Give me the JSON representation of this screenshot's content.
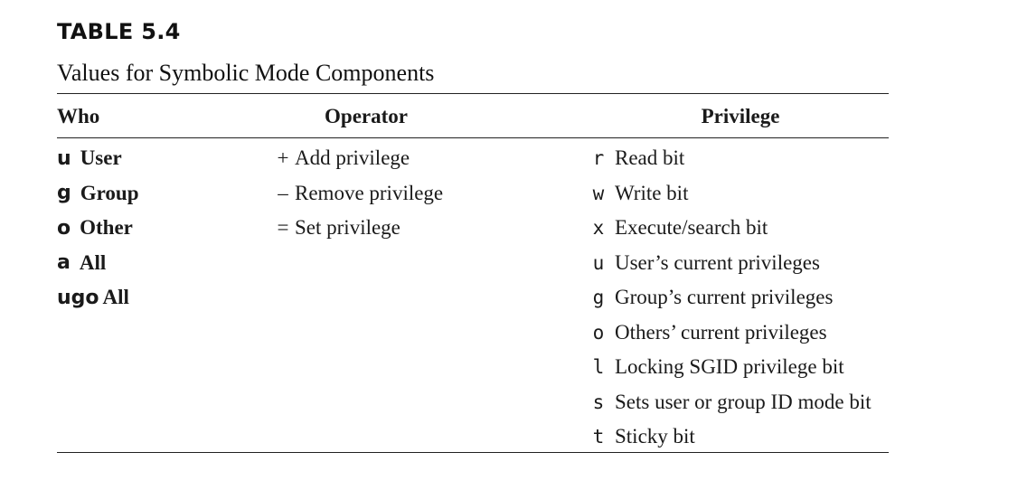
{
  "table": {
    "label": "TABLE 5.4",
    "caption": "Values for Symbolic Mode Components",
    "headers": {
      "who": "Who",
      "operator": "Operator",
      "privilege": "Privilege"
    },
    "who": [
      {
        "code": "u",
        "label": "User"
      },
      {
        "code": "g",
        "label": "Group"
      },
      {
        "code": "o",
        "label": "Other"
      },
      {
        "code": "a",
        "label": "All"
      },
      {
        "code": "ugo",
        "label": "All"
      }
    ],
    "operators": [
      {
        "symbol": "+",
        "label": "Add privilege"
      },
      {
        "symbol": "–",
        "label": "Remove privilege"
      },
      {
        "symbol": "=",
        "label": "Set privilege"
      }
    ],
    "privileges": [
      {
        "code": "r",
        "label": "Read bit"
      },
      {
        "code": "w",
        "label": "Write bit"
      },
      {
        "code": "x",
        "label": "Execute/search bit"
      },
      {
        "code": "u",
        "label": "User’s current privileges"
      },
      {
        "code": "g",
        "label": "Group’s current privileges"
      },
      {
        "code": "o",
        "label": "Others’ current privileges"
      },
      {
        "code": "l",
        "label": "Locking SGID privilege bit"
      },
      {
        "code": "s",
        "label": "Sets user or group ID mode bit"
      },
      {
        "code": "t",
        "label": "Sticky bit"
      }
    ]
  }
}
